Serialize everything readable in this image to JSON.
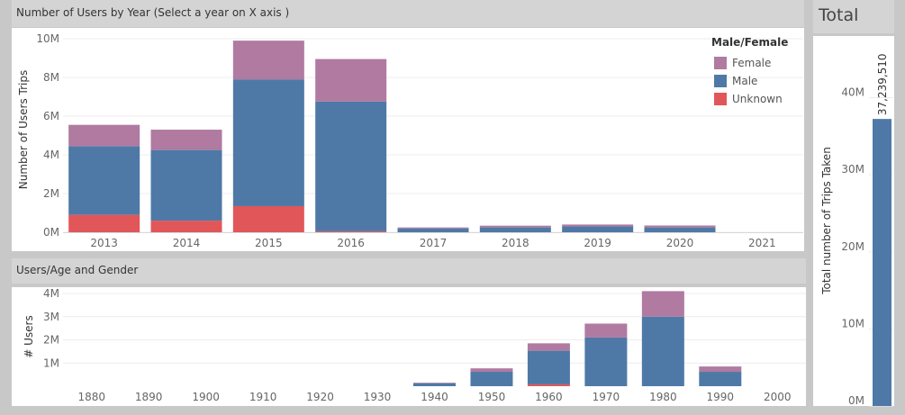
{
  "panels": {
    "top_title": "Number of Users by Year (Select a year on X axis )",
    "bottom_title": "Users/Age and Gender",
    "total_title": "Total"
  },
  "legend": {
    "title": "Male/Female",
    "items": [
      {
        "label": "Female",
        "color": "#b07aa1"
      },
      {
        "label": "Male",
        "color": "#4e79a7"
      },
      {
        "label": "Unknown",
        "color": "#e15759"
      }
    ]
  },
  "chart_data": [
    {
      "type": "bar",
      "stacked": true,
      "title": "Number of Users by Year (Select a year on X axis )",
      "xlabel": "",
      "ylabel": "Number of Users Trips",
      "categories": [
        "2013",
        "2014",
        "2015",
        "2016",
        "2017",
        "2018",
        "2019",
        "2020",
        "2021"
      ],
      "ylim": [
        0,
        10000000
      ],
      "yticks": [
        {
          "value": 0,
          "label": "0M"
        },
        {
          "value": 2000000,
          "label": "2M"
        },
        {
          "value": 4000000,
          "label": "4M"
        },
        {
          "value": 6000000,
          "label": "6M"
        },
        {
          "value": 8000000,
          "label": "8M"
        },
        {
          "value": 10000000,
          "label": "10M"
        }
      ],
      "series": [
        {
          "name": "Unknown",
          "color": "#e15759",
          "values": [
            900000,
            600000,
            1350000,
            50000,
            0,
            0,
            0,
            0,
            0
          ]
        },
        {
          "name": "Male",
          "color": "#4e79a7",
          "values": [
            3550000,
            3650000,
            6550000,
            6700000,
            200000,
            250000,
            300000,
            250000,
            0
          ]
        },
        {
          "name": "Female",
          "color": "#b07aa1",
          "values": [
            1100000,
            1050000,
            2000000,
            2200000,
            50000,
            90000,
            100000,
            100000,
            0
          ]
        }
      ],
      "grid": true,
      "legend_position": "top-right"
    },
    {
      "type": "bar",
      "stacked": true,
      "title": "Users/Age and Gender",
      "xlabel": "",
      "ylabel": "# Users",
      "categories": [
        "1880",
        "1890",
        "1900",
        "1910",
        "1920",
        "1930",
        "1940",
        "1950",
        "1960",
        "1970",
        "1980",
        "1990",
        "2000"
      ],
      "ylim": [
        0,
        4000000
      ],
      "yticks": [
        {
          "value": 1000000,
          "label": "1M"
        },
        {
          "value": 2000000,
          "label": "2M"
        },
        {
          "value": 3000000,
          "label": "3M"
        },
        {
          "value": 4000000,
          "label": "4M"
        }
      ],
      "series": [
        {
          "name": "Unknown",
          "color": "#e15759",
          "values": [
            0,
            0,
            0,
            0,
            0,
            0,
            0,
            0,
            80000,
            0,
            0,
            0,
            0
          ]
        },
        {
          "name": "Male",
          "color": "#4e79a7",
          "values": [
            0,
            0,
            0,
            0,
            0,
            0,
            130000,
            620000,
            1450000,
            2100000,
            3000000,
            620000,
            0
          ]
        },
        {
          "name": "Female",
          "color": "#b07aa1",
          "values": [
            0,
            0,
            0,
            0,
            0,
            0,
            20000,
            150000,
            320000,
            600000,
            1100000,
            230000,
            0
          ]
        }
      ],
      "grid": true
    },
    {
      "type": "bar",
      "title": "Total",
      "ylabel": "Total number of Trips Taken",
      "categories": [
        ""
      ],
      "values": [
        37239510
      ],
      "data_label": "37,239,510",
      "ylim": [
        0,
        48000000
      ],
      "yticks": [
        {
          "value": 0,
          "label": "0M"
        },
        {
          "value": 10000000,
          "label": "10M"
        },
        {
          "value": 20000000,
          "label": "20M"
        },
        {
          "value": 30000000,
          "label": "30M"
        },
        {
          "value": 40000000,
          "label": "40M"
        }
      ],
      "color": "#4e79a7",
      "grid": true
    }
  ]
}
